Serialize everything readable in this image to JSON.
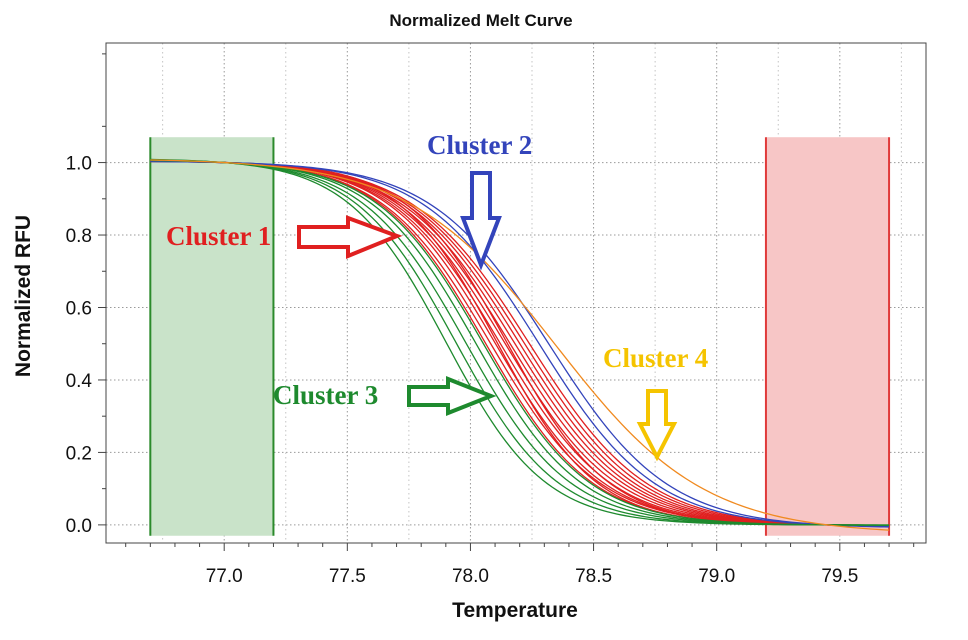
{
  "chart_data": {
    "type": "line",
    "title": "Normalized Melt Curve",
    "xlabel": "Temperature",
    "ylabel": "Normalized RFU",
    "xlim": [
      76.52,
      79.85
    ],
    "ylim": [
      -0.05,
      1.33
    ],
    "x_ticks": [
      "77.0",
      "77.5",
      "78.0",
      "78.5",
      "79.0",
      "79.5"
    ],
    "y_ticks": [
      "0.0",
      "0.2",
      "0.4",
      "0.6",
      "0.8",
      "1.0"
    ],
    "grid": true,
    "regions": [
      {
        "x": [
          76.7,
          77.2
        ],
        "y": [
          -0.03,
          1.07
        ],
        "fill": "#c9e3c9",
        "stroke": "#2b8a2b"
      },
      {
        "x": [
          79.2,
          79.7
        ],
        "y": [
          -0.03,
          1.07
        ],
        "fill": "#f7c6c6",
        "stroke": "#e03a3a"
      }
    ],
    "curve_x_range": [
      76.7,
      79.7
    ],
    "series": [
      {
        "group": "Cluster 1",
        "color": "#e02020",
        "curves": [
          {
            "tm": 78.06,
            "s": 0.215
          },
          {
            "tm": 78.08,
            "s": 0.22
          },
          {
            "tm": 78.1,
            "s": 0.218
          },
          {
            "tm": 78.12,
            "s": 0.222
          },
          {
            "tm": 78.14,
            "s": 0.225
          },
          {
            "tm": 78.16,
            "s": 0.228
          },
          {
            "tm": 78.18,
            "s": 0.23
          },
          {
            "tm": 78.2,
            "s": 0.232
          },
          {
            "tm": 78.22,
            "s": 0.235
          },
          {
            "tm": 78.24,
            "s": 0.238
          },
          {
            "tm": 78.11,
            "s": 0.2
          },
          {
            "tm": 78.15,
            "s": 0.205
          }
        ]
      },
      {
        "group": "Cluster 2",
        "color": "#3344bb",
        "curves": [
          {
            "tm": 78.28,
            "s": 0.235
          },
          {
            "tm": 78.32,
            "s": 0.24
          }
        ]
      },
      {
        "group": "Cluster 3",
        "color": "#1e8a2e",
        "curves": [
          {
            "tm": 77.9,
            "s": 0.2
          },
          {
            "tm": 77.94,
            "s": 0.205
          },
          {
            "tm": 77.98,
            "s": 0.21
          },
          {
            "tm": 78.02,
            "s": 0.212
          },
          {
            "tm": 78.05,
            "s": 0.215
          }
        ]
      },
      {
        "group": "Cluster 4",
        "color": "#f08a20",
        "curves": [
          {
            "tm": 78.35,
            "s": 0.3
          }
        ]
      }
    ],
    "annotations": [
      {
        "text": "Cluster 1",
        "color": "#e02020",
        "arrow": "right"
      },
      {
        "text": "Cluster 2",
        "color": "#3344bb",
        "arrow": "down"
      },
      {
        "text": "Cluster 3",
        "color": "#1e8a2e",
        "arrow": "right"
      },
      {
        "text": "Cluster 4",
        "color": "#f5c400",
        "arrow": "down"
      }
    ]
  }
}
